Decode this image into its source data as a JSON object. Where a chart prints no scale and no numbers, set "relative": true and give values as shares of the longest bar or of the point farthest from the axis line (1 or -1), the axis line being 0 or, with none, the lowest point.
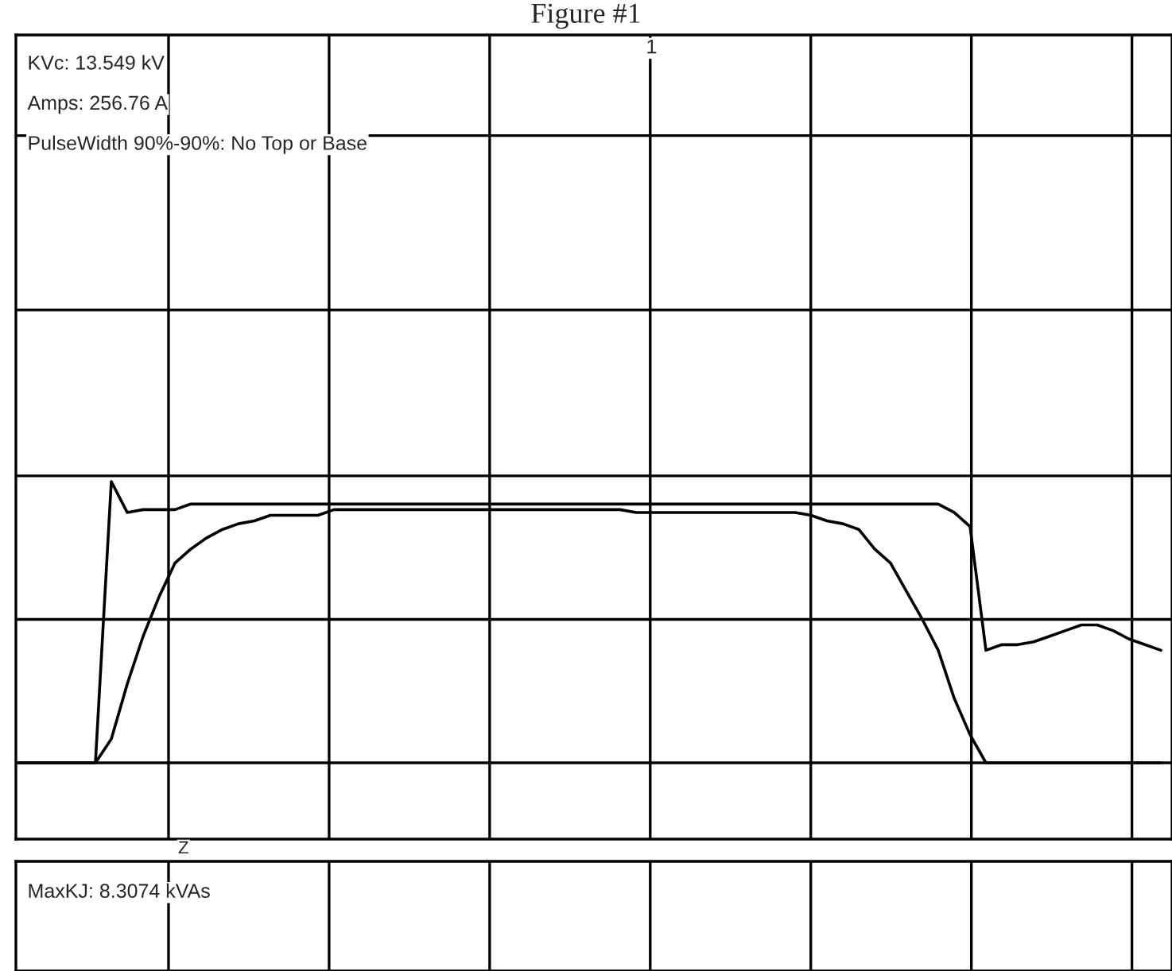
{
  "chart_data": {
    "type": "line",
    "title": "Figure #1",
    "relative": true,
    "grid": true,
    "categories": [
      null,
      null,
      null,
      null,
      null,
      null,
      null,
      null,
      null,
      null,
      null,
      null,
      null,
      null,
      null,
      null,
      null,
      null,
      null,
      null,
      null,
      null,
      null,
      null,
      null,
      null,
      null,
      null,
      null,
      null,
      null,
      null,
      null,
      null,
      null,
      null,
      null,
      null,
      null,
      null,
      null,
      null,
      null,
      null,
      null,
      null,
      null,
      null,
      null,
      null,
      null,
      null,
      null,
      null,
      null,
      null,
      null,
      null,
      null,
      null,
      null,
      null,
      null,
      null,
      null,
      null,
      null,
      null,
      null,
      null,
      null,
      null,
      null
    ],
    "series": [
      {
        "color": "#000000",
        "values": [
          0,
          0,
          0,
          0,
          0,
          0,
          1,
          0.89,
          0.9,
          0.9,
          0.9,
          0.92,
          0.92,
          0.92,
          0.92,
          0.92,
          0.92,
          0.92,
          0.92,
          0.92,
          0.92,
          0.92,
          0.92,
          0.92,
          0.92,
          0.92,
          0.92,
          0.92,
          0.92,
          0.92,
          0.92,
          0.92,
          0.92,
          0.92,
          0.92,
          0.92,
          0.92,
          0.92,
          0.92,
          0.92,
          0.92,
          0.92,
          0.92,
          0.92,
          0.92,
          0.92,
          0.92,
          0.92,
          0.92,
          0.92,
          0.92,
          0.92,
          0.92,
          0.92,
          0.92,
          0.92,
          0.92,
          0.92,
          0.92,
          0.89,
          0.84,
          0.4,
          0.42,
          0.42,
          0.43,
          0.45,
          0.47,
          0.49,
          0.49,
          0.47,
          0.44,
          0.42,
          0.4
        ]
      },
      {
        "color": "#000000",
        "values": [
          0,
          0,
          0,
          0,
          0,
          0,
          0.085,
          0.28,
          0.45,
          0.59,
          0.71,
          0.76,
          0.8,
          0.83,
          0.85,
          0.86,
          0.88,
          0.88,
          0.88,
          0.88,
          0.9,
          0.9,
          0.9,
          0.9,
          0.9,
          0.9,
          0.9,
          0.9,
          0.9,
          0.9,
          0.9,
          0.9,
          0.9,
          0.9,
          0.9,
          0.9,
          0.9,
          0.9,
          0.9,
          0.89,
          0.89,
          0.89,
          0.89,
          0.89,
          0.89,
          0.89,
          0.89,
          0.89,
          0.89,
          0.89,
          0.88,
          0.86,
          0.85,
          0.83,
          0.76,
          0.71,
          0.61,
          0.51,
          0.4,
          0.23,
          0.1,
          0,
          0,
          0,
          0,
          0,
          0,
          0,
          0,
          0,
          0,
          0,
          0
        ]
      }
    ],
    "annotations": [
      "KVc: 13.549 kV",
      "Amps: 256.76 A",
      "PulseWidth 90%-90%: No Top or Base",
      "MaxKJ: 8.3074 kVAs",
      "1",
      "Z"
    ]
  }
}
